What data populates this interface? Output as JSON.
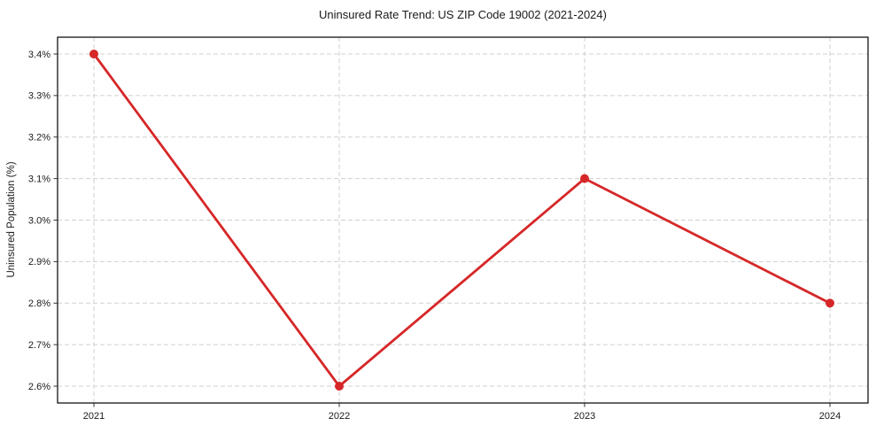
{
  "figure": {
    "background_color": "#ffffff",
    "text_color": "#1a1a1a"
  },
  "chart_data": {
    "type": "line",
    "title": "Uninsured Rate Trend: US ZIP Code 19002 (2021-2024)",
    "xlabel": "",
    "ylabel": "Uninsured Population (%)",
    "categories": [
      "2021",
      "2022",
      "2023",
      "2024"
    ],
    "series": [
      {
        "name": "Uninsured rate",
        "values": [
          3.4,
          2.6,
          3.1,
          2.8
        ],
        "color": "#d62728",
        "marker": "circle"
      }
    ],
    "ytick_values": [
      2.6,
      2.7,
      2.8,
      2.9,
      3.0,
      3.1,
      3.2,
      3.3,
      3.4
    ],
    "ytick_labels": [
      "2.6%",
      "2.7%",
      "2.8%",
      "2.9%",
      "3.0%",
      "3.1%",
      "3.2%",
      "3.3%",
      "3.4%"
    ],
    "ylim": [
      2.56,
      3.44
    ],
    "grid": "dashed, both axes",
    "grid_color": "#d0d0d0",
    "axis_border_color": "#000000",
    "legend": "none"
  }
}
